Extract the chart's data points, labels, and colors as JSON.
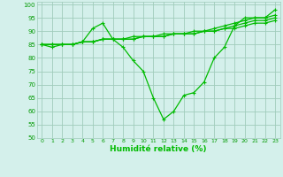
{
  "xlabel": "Humidité relative (%)",
  "background_color": "#d4f0eb",
  "grid_color": "#a0ccbb",
  "line_color": "#00bb00",
  "xlim": [
    -0.5,
    23.5
  ],
  "ylim": [
    50,
    101
  ],
  "xticks": [
    0,
    1,
    2,
    3,
    4,
    5,
    6,
    7,
    8,
    9,
    10,
    11,
    12,
    13,
    14,
    15,
    16,
    17,
    18,
    19,
    20,
    21,
    22,
    23
  ],
  "yticks": [
    50,
    55,
    60,
    65,
    70,
    75,
    80,
    85,
    90,
    95,
    100
  ],
  "line1": [
    85,
    84,
    85,
    85,
    86,
    91,
    93,
    87,
    84,
    79,
    75,
    65,
    57,
    60,
    66,
    67,
    71,
    80,
    84,
    92,
    95,
    95,
    95,
    98
  ],
  "line2": [
    85,
    85,
    85,
    85,
    86,
    86,
    87,
    87,
    87,
    88,
    88,
    88,
    89,
    89,
    89,
    90,
    90,
    91,
    92,
    93,
    94,
    95,
    95,
    96
  ],
  "line3": [
    85,
    85,
    85,
    85,
    86,
    86,
    87,
    87,
    87,
    87,
    88,
    88,
    88,
    89,
    89,
    89,
    90,
    90,
    91,
    92,
    93,
    94,
    94,
    95
  ],
  "line4": [
    85,
    85,
    85,
    85,
    86,
    86,
    87,
    87,
    87,
    87,
    88,
    88,
    88,
    89,
    89,
    89,
    90,
    90,
    91,
    91,
    92,
    93,
    93,
    94
  ]
}
